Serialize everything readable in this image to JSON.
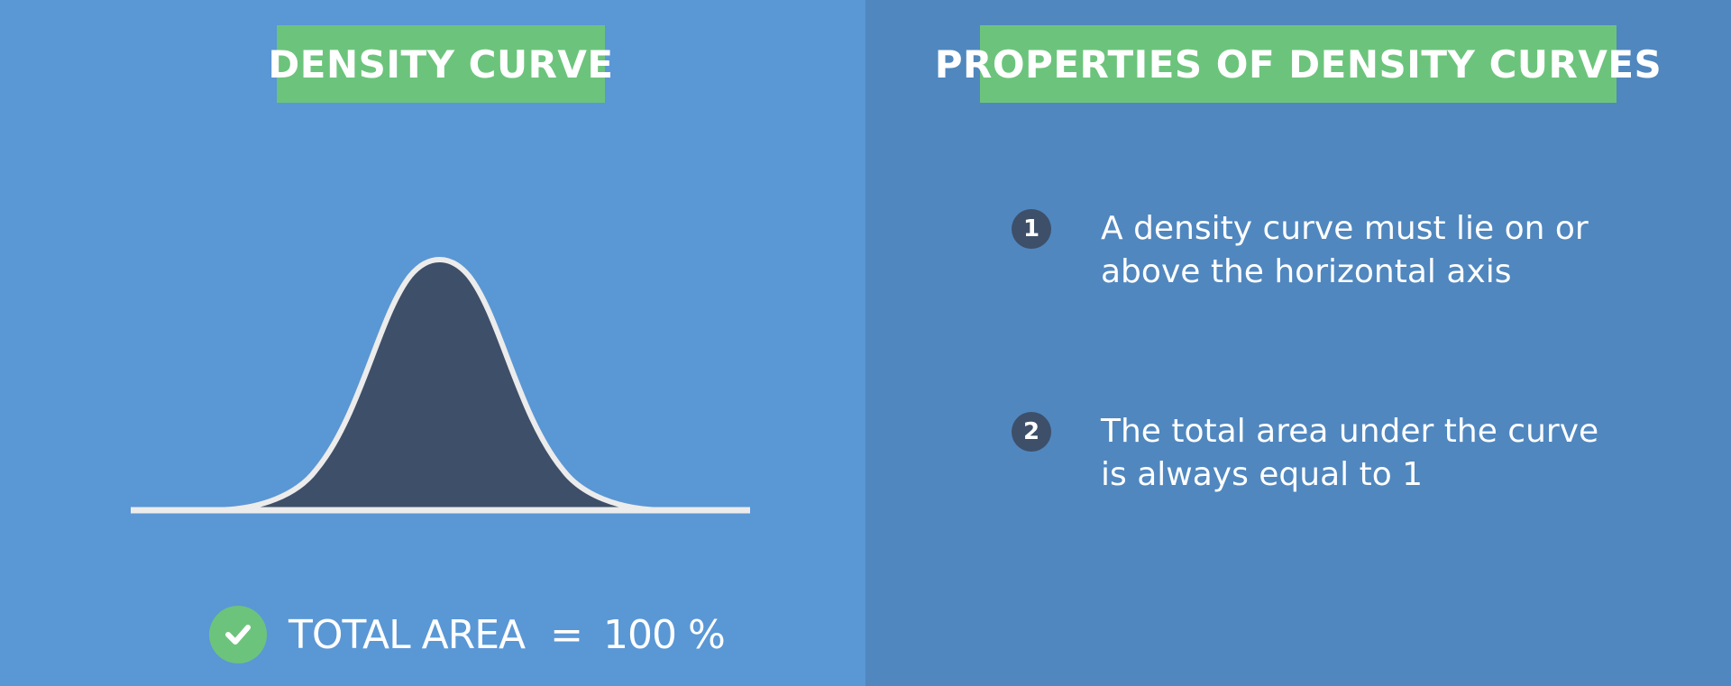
{
  "colors": {
    "left_bg": "#5A97D5",
    "right_bg": "#5087BF",
    "badge_bg": "#6CC47C",
    "curve_fill": "#3E4F69",
    "curve_stroke": "#ECECEC",
    "number_badge": "#3E4F69",
    "check_bg": "#6CC47C"
  },
  "left": {
    "title": "DENSITY CURVE",
    "summary": {
      "icon": "check-icon",
      "label": "TOTAL AREA",
      "equals": "=",
      "value": "100 %"
    }
  },
  "right": {
    "title": "PROPERTIES OF DENSITY CURVES",
    "properties": [
      {
        "number": "1",
        "text": "A density curve must lie on or above the horizontal axis"
      },
      {
        "number": "2",
        "text": "The total area under the curve is always equal to 1"
      }
    ]
  }
}
